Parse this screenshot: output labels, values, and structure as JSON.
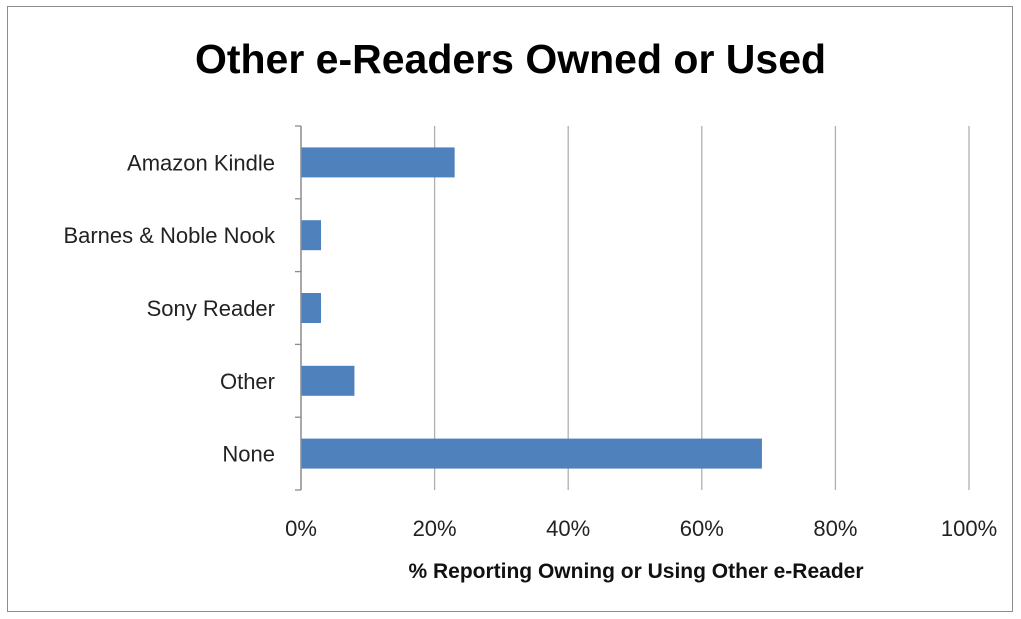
{
  "chart_data": {
    "type": "bar",
    "orientation": "horizontal",
    "title": "Other e-Readers Owned or Used",
    "xlabel": "% Reporting Owning or Using Other e-Reader",
    "ylabel": "",
    "categories": [
      "Amazon Kindle",
      "Barnes & Noble Nook",
      "Sony Reader",
      "Other",
      "None"
    ],
    "values": [
      23,
      3,
      3,
      8,
      69
    ],
    "xlim": [
      0,
      100
    ],
    "xticks": [
      "0%",
      "20%",
      "40%",
      "60%",
      "80%",
      "100%"
    ],
    "grid": "vertical",
    "legend": "none",
    "bar_color": "#4f81bd"
  }
}
